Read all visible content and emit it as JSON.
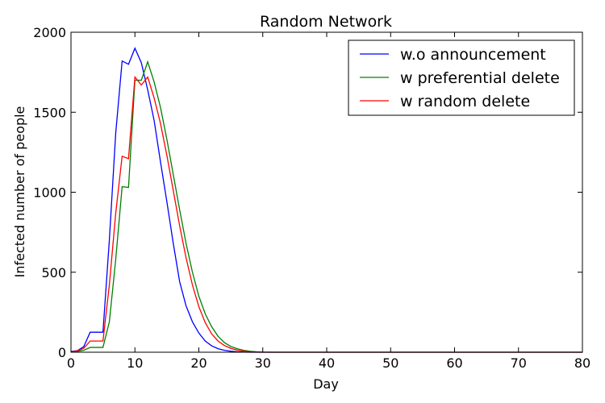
{
  "chart_data": {
    "type": "line",
    "title": "Random Network",
    "xlabel": "Day",
    "ylabel": "Infected number of people",
    "xlim": [
      0,
      80
    ],
    "ylim": [
      0,
      2000
    ],
    "xticks": [
      0,
      10,
      20,
      30,
      40,
      50,
      60,
      70,
      80
    ],
    "yticks": [
      0,
      500,
      1000,
      1500,
      2000
    ],
    "grid": false,
    "legend_position": "top-right",
    "series": [
      {
        "name": "w.o announcement",
        "color": "#0000ff",
        "x": [
          0,
          1,
          2,
          3,
          4,
          5,
          6,
          7,
          8,
          9,
          10,
          11,
          12,
          13,
          14,
          15,
          16,
          17,
          18,
          19,
          20,
          21,
          22,
          23,
          24,
          25,
          26,
          27,
          28,
          29,
          30,
          32,
          35,
          40,
          50,
          60,
          70,
          80
        ],
        "y": [
          5,
          10,
          35,
          125,
          125,
          125,
          700,
          1370,
          1820,
          1800,
          1900,
          1810,
          1640,
          1450,
          1190,
          940,
          680,
          440,
          290,
          190,
          120,
          70,
          40,
          22,
          12,
          6,
          3,
          1,
          0,
          0,
          0,
          0,
          0,
          0,
          0,
          0,
          0,
          0
        ]
      },
      {
        "name": "w preferential delete",
        "color": "#008000",
        "x": [
          0,
          1,
          2,
          3,
          4,
          5,
          6,
          7,
          8,
          9,
          10,
          11,
          12,
          13,
          14,
          15,
          16,
          17,
          18,
          19,
          20,
          21,
          22,
          23,
          24,
          25,
          26,
          27,
          28,
          29,
          30,
          32,
          35,
          40,
          50,
          60,
          70,
          80
        ],
        "y": [
          3,
          5,
          12,
          30,
          30,
          30,
          190,
          580,
          1035,
          1030,
          1700,
          1700,
          1815,
          1690,
          1530,
          1330,
          1110,
          890,
          680,
          500,
          350,
          240,
          160,
          100,
          60,
          36,
          22,
          12,
          6,
          3,
          1,
          0,
          0,
          0,
          0,
          0,
          0,
          0
        ]
      },
      {
        "name": "w random delete",
        "color": "#ff0000",
        "x": [
          0,
          1,
          2,
          3,
          4,
          5,
          6,
          7,
          8,
          9,
          10,
          11,
          12,
          13,
          14,
          15,
          16,
          17,
          18,
          19,
          20,
          21,
          22,
          23,
          24,
          25,
          26,
          27,
          28,
          29,
          30,
          32,
          35,
          40,
          50,
          60,
          70,
          80
        ],
        "y": [
          2,
          8,
          25,
          70,
          70,
          70,
          420,
          870,
          1225,
          1210,
          1720,
          1670,
          1720,
          1590,
          1430,
          1230,
          1010,
          790,
          590,
          420,
          285,
          185,
          115,
          70,
          42,
          24,
          13,
          7,
          3,
          1,
          0,
          0,
          0,
          0,
          0,
          0,
          0,
          0
        ]
      }
    ]
  }
}
